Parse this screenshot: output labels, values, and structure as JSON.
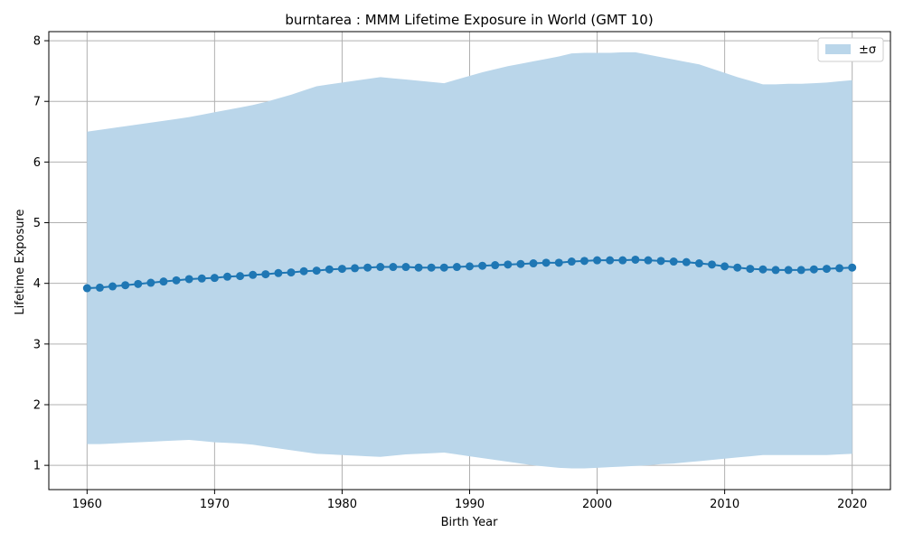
{
  "chart_data": {
    "type": "line",
    "title": "burntarea : MMM Lifetime Exposure in World (GMT 10)",
    "xlabel": "Birth Year",
    "ylabel": "Lifetime Exposure",
    "xlim": [
      1957,
      2023
    ],
    "ylim": [
      0.6,
      8.15
    ],
    "xticks": [
      "1960",
      "1970",
      "1980",
      "1990",
      "2000",
      "2010",
      "2020"
    ],
    "yticks": [
      "1",
      "2",
      "3",
      "4",
      "5",
      "6",
      "7",
      "8"
    ],
    "grid": true,
    "legend": {
      "placement": "top-right",
      "entries": [
        "±σ"
      ]
    },
    "colors": {
      "line": "#1f77b4",
      "band": "#bad6ea",
      "grid": "#b0b0b0"
    },
    "series": [
      {
        "x": [
          1960,
          1961,
          1962,
          1963,
          1964,
          1965,
          1966,
          1967,
          1968,
          1969,
          1970,
          1971,
          1972,
          1973,
          1974,
          1975,
          1976,
          1977,
          1978,
          1979,
          1980,
          1981,
          1982,
          1983,
          1984,
          1985,
          1986,
          1987,
          1988,
          1989,
          1990,
          1991,
          1992,
          1993,
          1994,
          1995,
          1996,
          1997,
          1998,
          1999,
          2000,
          2001,
          2002,
          2003,
          2004,
          2005,
          2006,
          2007,
          2008,
          2009,
          2010,
          2011,
          2012,
          2013,
          2014,
          2015,
          2016,
          2017,
          2018,
          2019,
          2020
        ],
        "values": [
          3.92,
          3.93,
          3.95,
          3.97,
          3.99,
          4.01,
          4.03,
          4.05,
          4.07,
          4.08,
          4.09,
          4.11,
          4.12,
          4.14,
          4.15,
          4.17,
          4.18,
          4.2,
          4.21,
          4.23,
          4.24,
          4.25,
          4.26,
          4.27,
          4.27,
          4.27,
          4.26,
          4.26,
          4.26,
          4.27,
          4.28,
          4.29,
          4.3,
          4.31,
          4.32,
          4.33,
          4.34,
          4.34,
          4.36,
          4.37,
          4.38,
          4.38,
          4.38,
          4.39,
          4.38,
          4.37,
          4.36,
          4.35,
          4.33,
          4.31,
          4.28,
          4.26,
          4.24,
          4.23,
          4.22,
          4.22,
          4.22,
          4.23,
          4.24,
          4.25,
          4.26
        ],
        "upper": [
          6.5,
          6.53,
          6.56,
          6.59,
          6.62,
          6.65,
          6.68,
          6.71,
          6.74,
          6.78,
          6.82,
          6.86,
          6.9,
          6.94,
          6.99,
          7.05,
          7.11,
          7.18,
          7.25,
          7.28,
          7.31,
          7.34,
          7.37,
          7.4,
          7.38,
          7.36,
          7.34,
          7.32,
          7.3,
          7.36,
          7.42,
          7.48,
          7.53,
          7.58,
          7.62,
          7.66,
          7.7,
          7.74,
          7.79,
          7.8,
          7.8,
          7.8,
          7.81,
          7.81,
          7.77,
          7.73,
          7.69,
          7.65,
          7.61,
          7.54,
          7.47,
          7.4,
          7.34,
          7.28,
          7.28,
          7.29,
          7.29,
          7.3,
          7.31,
          7.33,
          7.35
        ],
        "lower": [
          1.35,
          1.35,
          1.36,
          1.37,
          1.38,
          1.39,
          1.4,
          1.41,
          1.42,
          1.4,
          1.38,
          1.37,
          1.36,
          1.34,
          1.31,
          1.28,
          1.25,
          1.22,
          1.19,
          1.18,
          1.17,
          1.16,
          1.15,
          1.14,
          1.16,
          1.18,
          1.19,
          1.2,
          1.21,
          1.18,
          1.15,
          1.12,
          1.09,
          1.06,
          1.03,
          1.0,
          0.98,
          0.96,
          0.95,
          0.95,
          0.96,
          0.97,
          0.98,
          0.99,
          1.0,
          1.02,
          1.03,
          1.05,
          1.07,
          1.09,
          1.11,
          1.13,
          1.15,
          1.17,
          1.17,
          1.17,
          1.17,
          1.17,
          1.17,
          1.18,
          1.19
        ]
      }
    ]
  }
}
